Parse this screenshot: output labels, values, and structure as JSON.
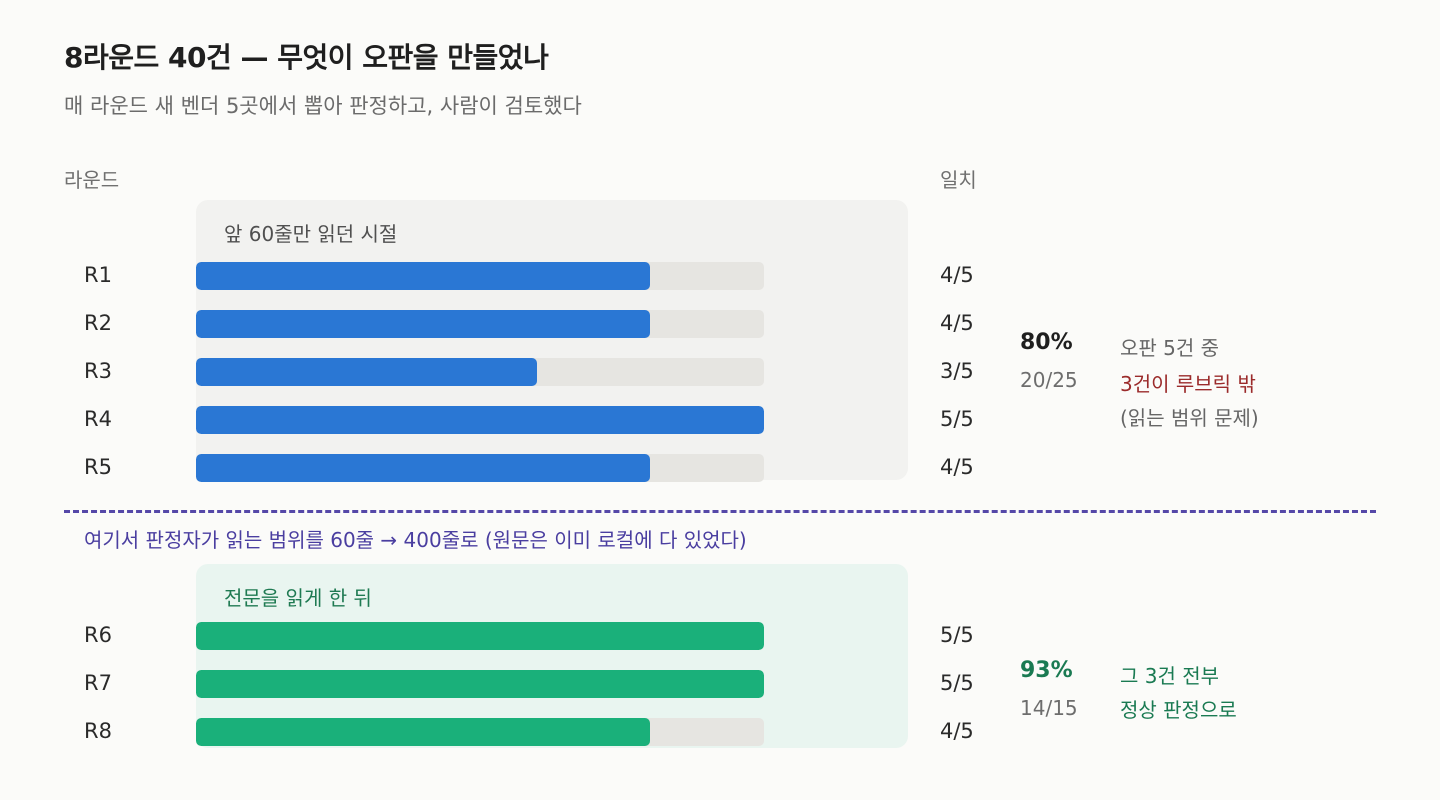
{
  "title": "8라운드 40건 — 무엇이 오판을 만들었나",
  "subtitle": "매 라운드 새 벤더 5곳에서 뽑아 판정하고, 사람이 검토했다",
  "headers": {
    "round": "라운드",
    "agreement": "일치"
  },
  "panels": {
    "before_label": "앞 60줄만 읽던 시절",
    "after_label": "전문을 읽게 한 뒤"
  },
  "colors": {
    "before": "#2a77d4",
    "after": "#1ab07a",
    "track": "#e6e5e1",
    "divider": "#5548a8"
  },
  "chart_data": {
    "type": "bar",
    "orientation": "horizontal",
    "categories": [
      "R1",
      "R2",
      "R3",
      "R4",
      "R5",
      "R6",
      "R7",
      "R8"
    ],
    "values": [
      4,
      4,
      3,
      5,
      4,
      5,
      5,
      4
    ],
    "max": 5,
    "labels": [
      "4/5",
      "4/5",
      "3/5",
      "5/5",
      "4/5",
      "5/5",
      "5/5",
      "4/5"
    ],
    "groups": [
      {
        "name": "앞 60줄만 읽던 시절",
        "rounds": [
          "R1",
          "R2",
          "R3",
          "R4",
          "R5"
        ]
      },
      {
        "name": "전문을 읽게 한 뒤",
        "rounds": [
          "R6",
          "R7",
          "R8"
        ]
      }
    ]
  },
  "summary": {
    "before": {
      "pct": "80%",
      "fraction": "20/25",
      "note1": "오판 5건 중",
      "note2": "3건이 루브릭 밖",
      "note3": "(읽는 범위 문제)"
    },
    "after": {
      "pct": "93%",
      "fraction": "14/15",
      "note1": "그 3건 전부",
      "note2": "정상 판정으로"
    }
  },
  "divider_note": "여기서 판정자가 읽는 범위를 60줄 → 400줄로 (원문은 이미 로컬에 다 있었다)"
}
